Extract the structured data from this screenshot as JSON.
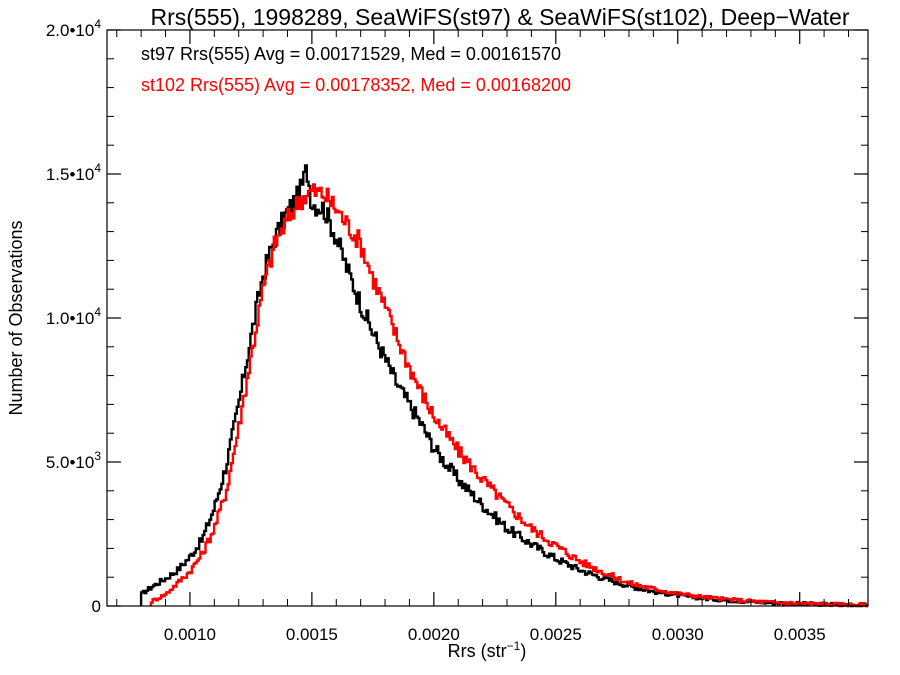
{
  "chart_data": {
    "type": "histogram",
    "title": "Rrs(555), 1998289, SeaWiFS(st97) & SeaWiFS(st102), Deep−Water",
    "xlabel": "Rrs (str",
    "xlabel_sup": "−1",
    "xlabel_end": ")",
    "ylabel": "Number of Observations",
    "xlim": [
      0.00066,
      0.00378
    ],
    "ylim": [
      0,
      20000
    ],
    "x_ticks": [
      {
        "value": 0.001,
        "label": "0.0010"
      },
      {
        "value": 0.0015,
        "label": "0.0015"
      },
      {
        "value": 0.002,
        "label": "0.0020"
      },
      {
        "value": 0.0025,
        "label": "0.0025"
      },
      {
        "value": 0.003,
        "label": "0.0030"
      },
      {
        "value": 0.0035,
        "label": "0.0035"
      }
    ],
    "y_ticks": [
      {
        "value": 0,
        "base": "0",
        "exp": ""
      },
      {
        "value": 5000,
        "base": "5.0•10",
        "exp": "3"
      },
      {
        "value": 10000,
        "base": "1.0•10",
        "exp": "4"
      },
      {
        "value": 15000,
        "base": "1.5•10",
        "exp": "4"
      },
      {
        "value": 20000,
        "base": "2.0•10",
        "exp": "4"
      }
    ],
    "annotations": [
      {
        "text": "st97 Rrs(555) Avg = 0.00171529, Med = 0.00161570",
        "color": "#000000"
      },
      {
        "text": "st102 Rrs(555) Avg = 0.00178352, Med = 0.00168200",
        "color": "#ff0000"
      }
    ],
    "series": [
      {
        "name": "st97",
        "color": "#000000",
        "x": [
          0.0008,
          0.00085,
          0.0009,
          0.00095,
          0.001,
          0.00105,
          0.0011,
          0.00115,
          0.0012,
          0.00125,
          0.0013,
          0.00135,
          0.0014,
          0.00145,
          0.00148,
          0.0015,
          0.00155,
          0.0016,
          0.00165,
          0.0017,
          0.00175,
          0.0018,
          0.00185,
          0.0019,
          0.00195,
          0.002,
          0.0021,
          0.0022,
          0.0023,
          0.0024,
          0.0025,
          0.0026,
          0.0027,
          0.0028,
          0.0029,
          0.003,
          0.0031,
          0.0032,
          0.0033,
          0.0034,
          0.0035,
          0.0036,
          0.0037,
          0.00378
        ],
        "y": [
          400,
          700,
          950,
          1250,
          1700,
          2300,
          3400,
          4900,
          7000,
          9300,
          11500,
          12800,
          13700,
          14300,
          15200,
          14000,
          13800,
          12800,
          11600,
          10500,
          9500,
          8600,
          7700,
          7000,
          6300,
          5500,
          4400,
          3500,
          2700,
          2150,
          1650,
          1250,
          950,
          700,
          500,
          370,
          270,
          200,
          150,
          110,
          80,
          60,
          45,
          35
        ]
      },
      {
        "name": "st102",
        "color": "#ff0000",
        "x": [
          0.00084,
          0.0009,
          0.00095,
          0.001,
          0.00105,
          0.0011,
          0.00115,
          0.0012,
          0.00125,
          0.0013,
          0.00135,
          0.0014,
          0.00145,
          0.0015,
          0.00155,
          0.0016,
          0.00165,
          0.0017,
          0.00175,
          0.0018,
          0.00185,
          0.0019,
          0.00195,
          0.002,
          0.0021,
          0.0022,
          0.0023,
          0.0024,
          0.0025,
          0.0026,
          0.0027,
          0.0028,
          0.0029,
          0.003,
          0.0031,
          0.0032,
          0.0033,
          0.0034,
          0.0035,
          0.0036,
          0.0037,
          0.00378
        ],
        "y": [
          150,
          400,
          800,
          1200,
          1800,
          2700,
          4000,
          6200,
          8600,
          11000,
          12600,
          13400,
          14100,
          14400,
          14300,
          13800,
          13200,
          12600,
          11400,
          10400,
          9300,
          8300,
          7400,
          6600,
          5400,
          4400,
          3500,
          2700,
          2100,
          1550,
          1150,
          800,
          600,
          430,
          320,
          230,
          170,
          120,
          90,
          65,
          45,
          35
        ]
      }
    ]
  }
}
